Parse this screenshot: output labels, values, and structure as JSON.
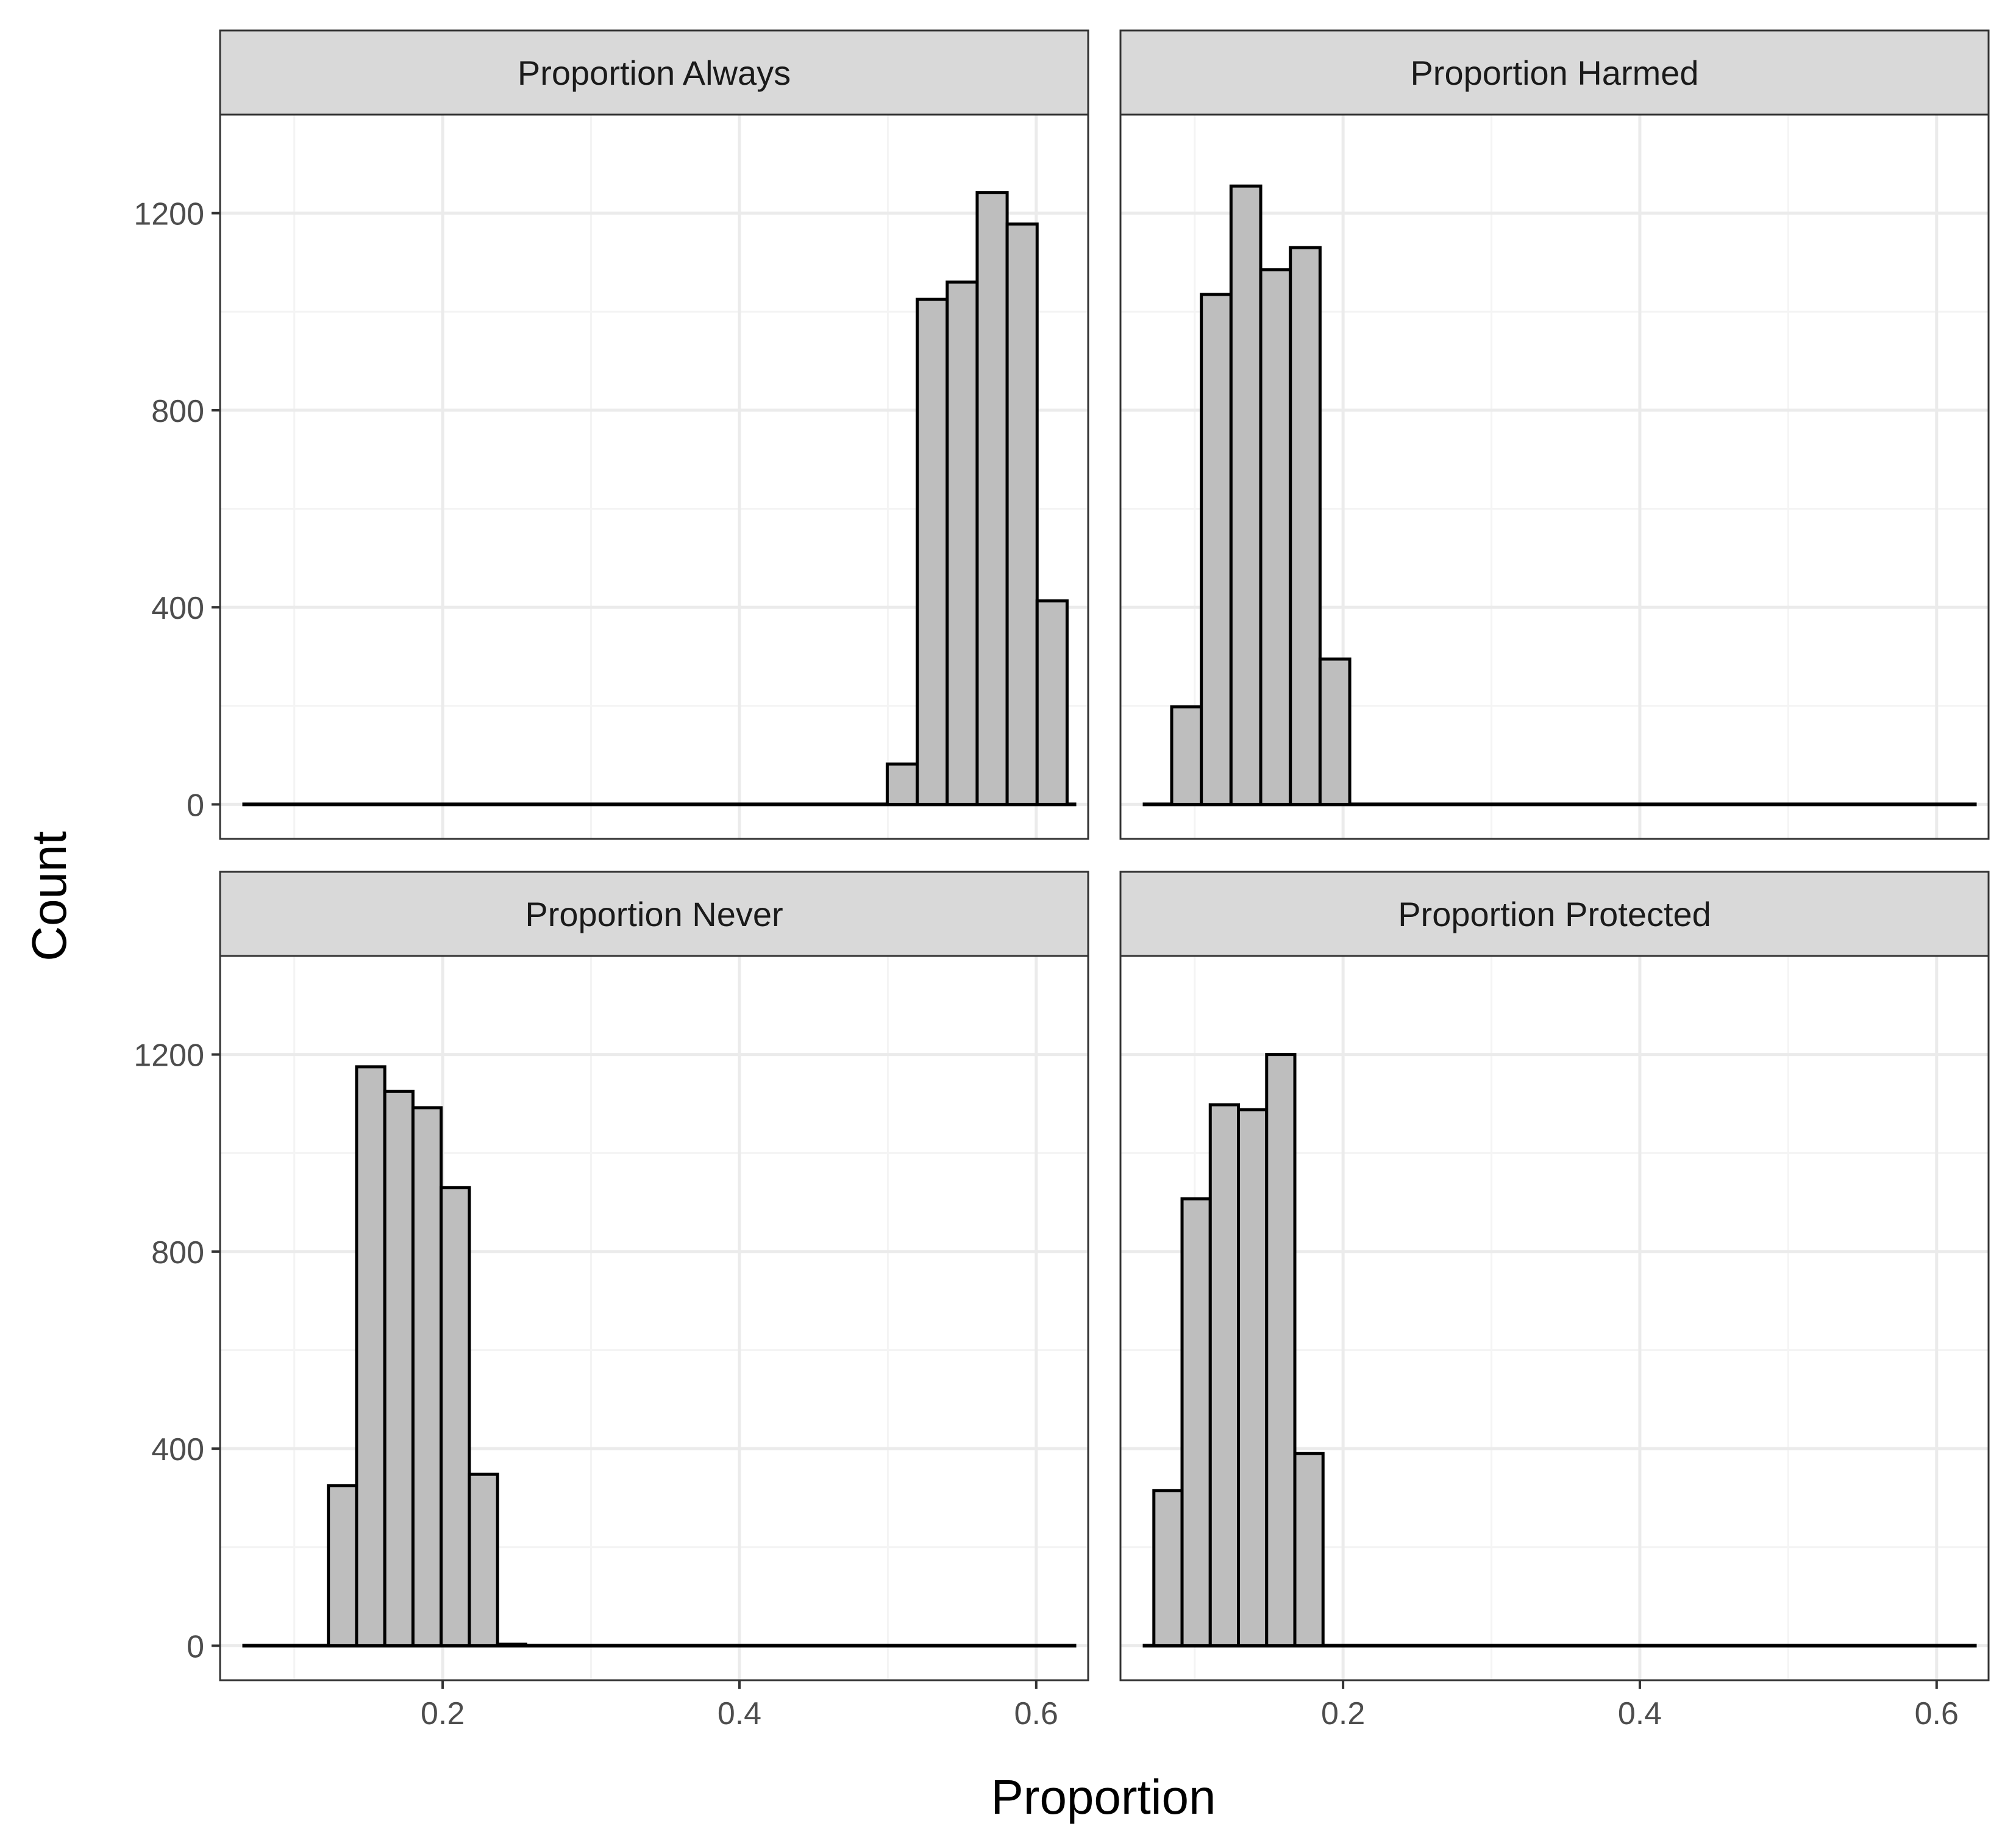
{
  "chart_data": {
    "type": "bar",
    "xlabel": "Proportion",
    "ylabel": "Count",
    "xlim": [
      0.05,
      0.635
    ],
    "ylim": [
      -70,
      1400
    ],
    "x_ticks": [
      0.2,
      0.4,
      0.6
    ],
    "x_tick_labels": [
      "0.2",
      "0.4",
      "0.6"
    ],
    "y_ticks": [
      0,
      400,
      800,
      1200
    ],
    "y_tick_labels": [
      "0",
      "400",
      "800",
      "1200"
    ],
    "grid": true,
    "baseline_range": [
      0.065,
      0.627
    ],
    "bin_width": 0.0202,
    "panels": [
      {
        "title": "Proportion Always",
        "bins": [
          {
            "x0": 0.4996,
            "x1": 0.5198,
            "count": 82
          },
          {
            "x0": 0.5198,
            "x1": 0.54,
            "count": 1025
          },
          {
            "x0": 0.54,
            "x1": 0.5602,
            "count": 1060
          },
          {
            "x0": 0.5602,
            "x1": 0.5804,
            "count": 1242
          },
          {
            "x0": 0.5804,
            "x1": 0.6006,
            "count": 1178
          },
          {
            "x0": 0.6006,
            "x1": 0.6208,
            "count": 413
          }
        ]
      },
      {
        "title": "Proportion Harmed",
        "bins": [
          {
            "x0": 0.0845,
            "x1": 0.1045,
            "count": 198
          },
          {
            "x0": 0.1045,
            "x1": 0.1245,
            "count": 1035
          },
          {
            "x0": 0.1245,
            "x1": 0.1445,
            "count": 1255
          },
          {
            "x0": 0.1445,
            "x1": 0.1645,
            "count": 1085
          },
          {
            "x0": 0.1645,
            "x1": 0.1845,
            "count": 1130
          },
          {
            "x0": 0.1845,
            "x1": 0.2045,
            "count": 295
          }
        ]
      },
      {
        "title": "Proportion Never",
        "bins": [
          {
            "x0": 0.123,
            "x1": 0.142,
            "count": 325
          },
          {
            "x0": 0.142,
            "x1": 0.161,
            "count": 1175
          },
          {
            "x0": 0.161,
            "x1": 0.18,
            "count": 1125
          },
          {
            "x0": 0.18,
            "x1": 0.199,
            "count": 1092
          },
          {
            "x0": 0.199,
            "x1": 0.218,
            "count": 930
          },
          {
            "x0": 0.218,
            "x1": 0.237,
            "count": 348
          },
          {
            "x0": 0.237,
            "x1": 0.256,
            "count": 3
          }
        ]
      },
      {
        "title": "Proportion Protected",
        "bins": [
          {
            "x0": 0.0725,
            "x1": 0.0915,
            "count": 315
          },
          {
            "x0": 0.0915,
            "x1": 0.1105,
            "count": 907
          },
          {
            "x0": 0.1105,
            "x1": 0.1295,
            "count": 1098
          },
          {
            "x0": 0.1295,
            "x1": 0.1485,
            "count": 1088
          },
          {
            "x0": 0.1485,
            "x1": 0.1675,
            "count": 1200
          },
          {
            "x0": 0.1675,
            "x1": 0.1865,
            "count": 390
          }
        ]
      }
    ],
    "colors": {
      "bar_fill": "#bebebe",
      "bar_stroke": "#000000",
      "strip_fill": "#d9d9d9",
      "panel_border": "#333333",
      "grid_major": "#ebebeb",
      "grid_minor": "#f4f4f4"
    }
  }
}
